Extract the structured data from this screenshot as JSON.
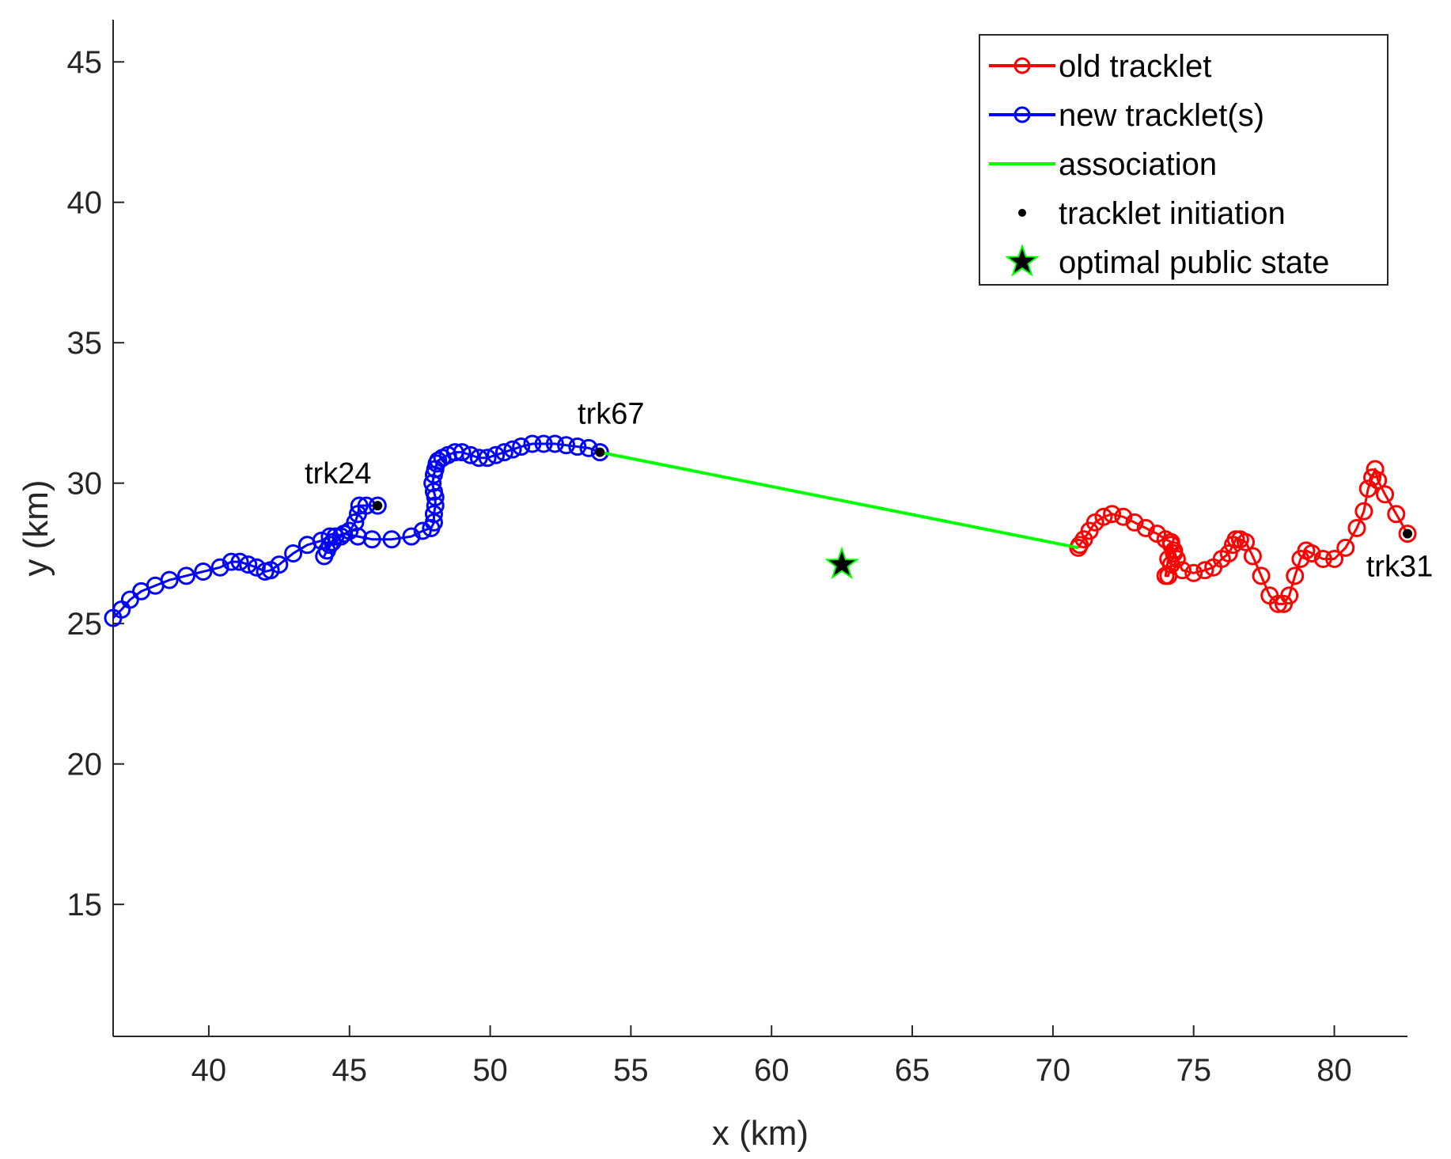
{
  "chart_data": {
    "type": "line",
    "xlabel": "x (km)",
    "ylabel": "y (km)",
    "xlim": [
      36.6,
      82.6
    ],
    "ylim": [
      10.3,
      46.5
    ],
    "xticks": [
      40,
      45,
      50,
      55,
      60,
      65,
      70,
      75,
      80
    ],
    "yticks": [
      15,
      20,
      25,
      30,
      35,
      40,
      45
    ],
    "grid": false,
    "legend_position": "top-right",
    "legend": [
      {
        "label": "old tracklet",
        "kind": "line-circle",
        "color": "#ff0000"
      },
      {
        "label": "new tracklet(s)",
        "kind": "line-circle",
        "color": "#0000ff"
      },
      {
        "label": "association",
        "kind": "line",
        "color": "#00ff00"
      },
      {
        "label": "tracklet initiation",
        "kind": "dot",
        "color": "#000000"
      },
      {
        "label": "optimal public state",
        "kind": "star",
        "color": "#000000"
      }
    ],
    "series": [
      {
        "name": "old tracklet",
        "color": "#ff0000",
        "x": [
          82.6,
          82.2,
          81.8,
          81.55,
          81.45,
          81.35,
          81.2,
          81.05,
          80.8,
          80.4,
          80.0,
          79.6,
          79.2,
          79.0,
          78.8,
          78.6,
          78.4,
          78.2,
          78.0,
          77.7,
          77.4,
          77.1,
          76.85,
          76.65,
          76.5,
          76.4,
          76.25,
          76.0,
          75.7,
          75.4,
          75.0,
          74.6,
          74.4,
          74.3,
          74.2,
          74.1,
          74.0,
          74.1,
          74.2,
          74.3,
          74.2,
          74.0,
          73.7,
          73.3,
          72.9,
          72.5,
          72.1,
          71.8,
          71.5,
          71.3,
          71.1,
          70.95,
          70.9
        ],
        "y": [
          28.2,
          28.9,
          29.6,
          30.1,
          30.5,
          30.2,
          29.8,
          29.0,
          28.4,
          27.7,
          27.3,
          27.3,
          27.5,
          27.6,
          27.3,
          26.7,
          26.0,
          25.7,
          25.7,
          26.0,
          26.7,
          27.4,
          27.9,
          28.0,
          28.0,
          27.8,
          27.5,
          27.3,
          27.0,
          26.9,
          26.8,
          26.9,
          27.3,
          27.6,
          27.8,
          27.3,
          26.7,
          26.7,
          27.1,
          27.5,
          27.9,
          28.0,
          28.2,
          28.4,
          28.6,
          28.8,
          28.9,
          28.8,
          28.6,
          28.3,
          28.0,
          27.8,
          27.7
        ]
      },
      {
        "name": "new tracklet(s)",
        "color": "#0000ff",
        "x": [
          46.0,
          45.6,
          45.35,
          45.3,
          45.2,
          45.0,
          44.7,
          44.4,
          44.2,
          44.1,
          44.3,
          44.5,
          44.8,
          45.3,
          45.8,
          46.5,
          47.2,
          47.6,
          47.9,
          48.0,
          48.0,
          48.05,
          48.05,
          48.0,
          47.95,
          48.0,
          48.05,
          48.1,
          48.15,
          48.3,
          48.5,
          48.75,
          49.0,
          49.3,
          49.6,
          49.9,
          50.2,
          50.5,
          50.8,
          51.1,
          51.5,
          51.9,
          52.3,
          52.7,
          53.1,
          53.5,
          53.9
        ],
        "y": [
          29.2,
          29.2,
          29.2,
          28.9,
          28.6,
          28.3,
          28.1,
          27.9,
          27.6,
          27.4,
          27.8,
          28.1,
          28.2,
          28.1,
          28.0,
          28.0,
          28.1,
          28.3,
          28.4,
          28.6,
          28.9,
          29.2,
          29.5,
          29.7,
          30.0,
          30.3,
          30.5,
          30.7,
          30.8,
          30.9,
          31.0,
          31.1,
          31.1,
          31.0,
          30.9,
          30.9,
          31.0,
          31.1,
          31.2,
          31.3,
          31.4,
          31.4,
          31.4,
          31.35,
          31.3,
          31.25,
          31.1
        ]
      },
      {
        "name": "new tracklet(s) (trk24 segment)",
        "color": "#0000ff",
        "x": [
          44.3,
          44.0,
          43.5,
          43.0,
          42.5,
          42.2,
          42.0,
          41.7,
          41.4,
          41.1,
          40.8,
          40.4,
          39.8,
          39.2,
          38.6,
          38.1,
          37.6,
          37.2,
          36.9,
          36.6
        ],
        "y": [
          28.1,
          27.95,
          27.8,
          27.5,
          27.1,
          26.9,
          26.85,
          27.0,
          27.1,
          27.2,
          27.2,
          27.0,
          26.85,
          26.7,
          26.55,
          26.35,
          26.15,
          25.85,
          25.5,
          25.2
        ]
      },
      {
        "name": "association",
        "color": "#00ff00",
        "x": [
          53.9,
          70.9
        ],
        "y": [
          31.1,
          27.7
        ]
      }
    ],
    "initiation_points": [
      {
        "label": "trk24",
        "x": 46.0,
        "y": 29.2
      },
      {
        "label": "trk67",
        "x": 53.9,
        "y": 31.1
      },
      {
        "label": "trk31",
        "x": 82.6,
        "y": 28.2
      }
    ],
    "optimal_public_state": {
      "x": 62.5,
      "y": 27.1
    }
  }
}
